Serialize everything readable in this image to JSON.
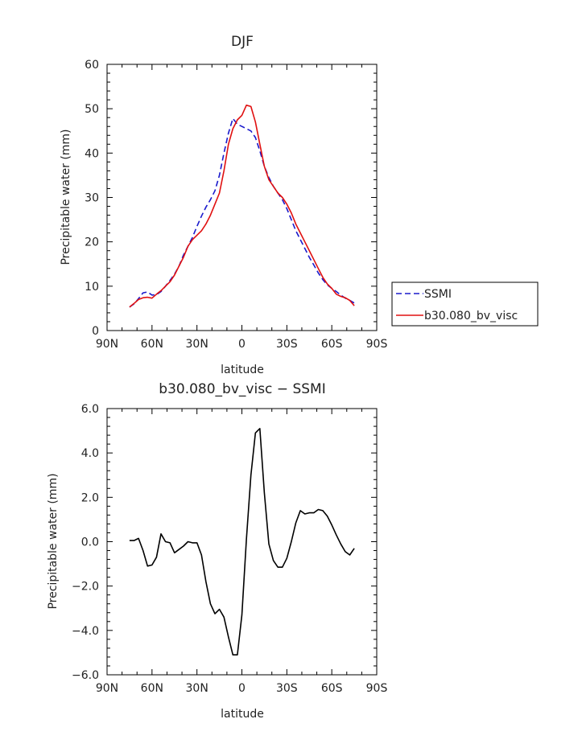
{
  "chart_data": [
    {
      "type": "line",
      "title": "DJF",
      "xlabel": "latitude",
      "ylabel": "Precipitable water (mm)",
      "xlim": [
        -90,
        90
      ],
      "ylim": [
        0,
        60
      ],
      "x_ticks": [
        "90N",
        "60N",
        "30N",
        "0",
        "30S",
        "60S",
        "90S"
      ],
      "y_ticks": [
        "0",
        "10",
        "20",
        "30",
        "40",
        "50",
        "60"
      ],
      "legend_position": "right",
      "series": [
        {
          "name": "SSMI",
          "color": "#1a1acc",
          "dash": "dashed",
          "x": [
            -75,
            -72,
            -69,
            -66,
            -63,
            -60,
            -57,
            -54,
            -51,
            -48,
            -45,
            -42,
            -39,
            -36,
            -33,
            -30,
            -27,
            -24,
            -21,
            -18,
            -15,
            -12,
            -9,
            -6,
            -3,
            0,
            3,
            6,
            9,
            12,
            15,
            18,
            21,
            24,
            27,
            30,
            33,
            36,
            39,
            42,
            45,
            48,
            51,
            54,
            57,
            60,
            63,
            66,
            69,
            72,
            75
          ],
          "values": [
            5.3,
            6.0,
            7.2,
            8.5,
            8.7,
            8.0,
            8.1,
            8.8,
            10.0,
            11.3,
            12.7,
            14.5,
            17.0,
            19.0,
            21.0,
            23.5,
            25.8,
            27.8,
            29.5,
            31.5,
            35.0,
            40.0,
            44.5,
            47.8,
            46.5,
            46.0,
            45.5,
            45.0,
            43.5,
            40.5,
            37.0,
            34.5,
            32.5,
            31.0,
            29.5,
            27.5,
            25.0,
            22.5,
            20.5,
            18.5,
            16.5,
            14.8,
            13.0,
            11.5,
            10.3,
            9.5,
            8.8,
            8.0,
            7.3,
            6.8,
            6.2
          ]
        },
        {
          "name": "b30.080_bv_visc",
          "color": "#e01010",
          "dash": "solid",
          "x": [
            -75,
            -72,
            -69,
            -66,
            -63,
            -60,
            -57,
            -54,
            -51,
            -48,
            -45,
            -42,
            -39,
            -36,
            -33,
            -30,
            -27,
            -24,
            -21,
            -18,
            -15,
            -12,
            -9,
            -6,
            -3,
            0,
            3,
            6,
            9,
            12,
            15,
            18,
            21,
            24,
            27,
            30,
            33,
            36,
            39,
            42,
            45,
            48,
            51,
            54,
            57,
            60,
            63,
            66,
            69,
            72,
            75
          ],
          "values": [
            5.3,
            6.1,
            7.0,
            7.4,
            7.5,
            7.3,
            8.2,
            9.0,
            10.0,
            11.0,
            12.5,
            14.5,
            16.5,
            19.0,
            20.5,
            21.5,
            22.5,
            24.0,
            26.0,
            28.5,
            31.0,
            36.0,
            42.0,
            45.5,
            47.5,
            48.5,
            50.8,
            50.5,
            47.0,
            42.0,
            37.0,
            34.0,
            32.5,
            31.0,
            30.0,
            28.5,
            26.5,
            24.0,
            22.0,
            20.0,
            18.0,
            16.0,
            14.0,
            12.0,
            10.5,
            9.5,
            8.2,
            7.7,
            7.4,
            6.8,
            5.6
          ]
        }
      ]
    },
    {
      "type": "line",
      "title": "b30.080_bv_visc − SSMI",
      "xlabel": "latitude",
      "ylabel": "Precipitable water (mm)",
      "xlim": [
        -90,
        90
      ],
      "ylim": [
        -6,
        6
      ],
      "x_ticks": [
        "90N",
        "60N",
        "30N",
        "0",
        "30S",
        "60S",
        "90S"
      ],
      "y_ticks": [
        "−6.0",
        "−4.0",
        "−2.0",
        "0.0",
        "2.0",
        "4.0",
        "6.0"
      ],
      "series": [
        {
          "color": "#000000",
          "dash": "solid",
          "x": [
            -75,
            -72,
            -69,
            -66,
            -63,
            -60,
            -57,
            -54,
            -51,
            -48,
            -45,
            -42,
            -39,
            -36,
            -33,
            -30,
            -27,
            -24,
            -21,
            -18,
            -15,
            -12,
            -9,
            -6,
            -3,
            0,
            3,
            6,
            9,
            12,
            15,
            18,
            21,
            24,
            27,
            30,
            33,
            36,
            39,
            42,
            45,
            48,
            51,
            54,
            57,
            60,
            63,
            66,
            69,
            72,
            75
          ],
          "values": [
            0.05,
            0.05,
            0.15,
            -0.4,
            -1.1,
            -1.05,
            -0.7,
            0.35,
            0.0,
            -0.05,
            -0.5,
            -0.35,
            -0.2,
            0.0,
            -0.05,
            -0.05,
            -0.6,
            -1.8,
            -2.8,
            -3.25,
            -3.05,
            -3.4,
            -4.3,
            -5.1,
            -5.1,
            -3.3,
            0.1,
            3.0,
            4.9,
            5.1,
            2.2,
            -0.1,
            -0.85,
            -1.15,
            -1.15,
            -0.75,
            0.0,
            0.85,
            1.4,
            1.25,
            1.3,
            1.3,
            1.45,
            1.4,
            1.15,
            0.75,
            0.3,
            -0.1,
            -0.45,
            -0.6,
            -0.3
          ]
        }
      ]
    }
  ]
}
